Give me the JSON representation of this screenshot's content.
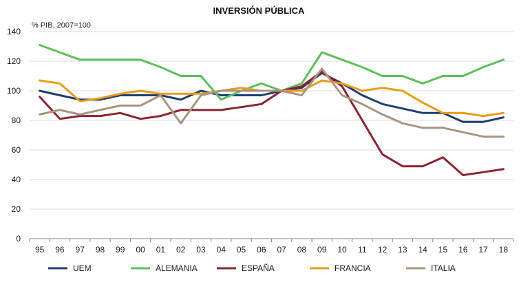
{
  "chart_data": {
    "type": "line",
    "title": "INVERSIÓN PÚBLICA",
    "ylabel": "% PIB, 2007=100",
    "xlabel": "",
    "categories": [
      "95",
      "96",
      "97",
      "98",
      "99",
      "00",
      "01",
      "02",
      "03",
      "04",
      "05",
      "06",
      "07",
      "08",
      "09",
      "10",
      "11",
      "12",
      "13",
      "14",
      "15",
      "16",
      "17",
      "18"
    ],
    "ylim": [
      0,
      140
    ],
    "yticks": [
      0,
      20,
      40,
      60,
      80,
      100,
      120,
      140
    ],
    "grid": true,
    "legend_position": "bottom",
    "series": [
      {
        "name": "UEM",
        "color": "#1f3d6e",
        "values": [
          100,
          97,
          94,
          94,
          97,
          97,
          97,
          94,
          100,
          97,
          97,
          97,
          100,
          102,
          112,
          105,
          97,
          91,
          88,
          85,
          85,
          79,
          79,
          82
        ]
      },
      {
        "name": "ALEMANIA",
        "color": "#5cbf5a",
        "values": [
          131,
          126,
          121,
          121,
          121,
          121,
          116,
          110,
          110,
          94,
          100,
          105,
          100,
          105,
          126,
          121,
          116,
          110,
          110,
          105,
          110,
          110,
          116,
          121
        ]
      },
      {
        "name": "ESPAÑA",
        "color": "#8b2332",
        "values": [
          96,
          81,
          83,
          83,
          85,
          81,
          83,
          87,
          87,
          87,
          89,
          91,
          100,
          103,
          113,
          103,
          80,
          57,
          49,
          49,
          55,
          43,
          45,
          47
        ]
      },
      {
        "name": "FRANCIA",
        "color": "#e89b1a",
        "values": [
          107,
          105,
          93,
          95,
          98,
          100,
          98,
          98,
          98,
          100,
          102,
          100,
          100,
          100,
          107,
          105,
          100,
          102,
          100,
          92,
          85,
          85,
          83,
          85
        ]
      },
      {
        "name": "ITALIA",
        "color": "#a89480",
        "values": [
          84,
          87,
          84,
          87,
          90,
          90,
          97,
          78,
          97,
          100,
          100,
          100,
          100,
          97,
          115,
          97,
          91,
          84,
          78,
          75,
          75,
          72,
          69,
          69
        ]
      }
    ]
  }
}
